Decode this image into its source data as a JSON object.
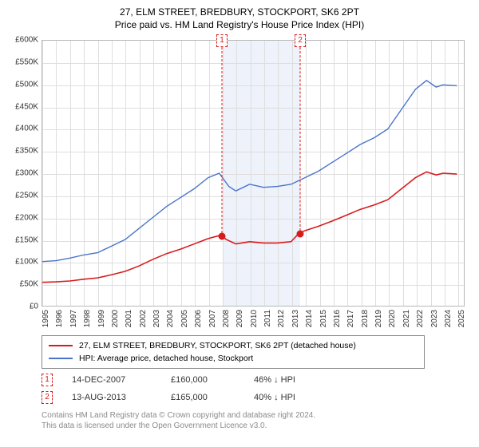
{
  "title": "27, ELM STREET, BREDBURY, STOCKPORT, SK6 2PT",
  "subtitle": "Price paid vs. HM Land Registry's House Price Index (HPI)",
  "chart": {
    "type": "line",
    "background_color": "#ffffff",
    "grid_color": "#dedede",
    "border_color": "#b8b8b8",
    "shade_color": "#edf2fb",
    "label_fontsize": 10,
    "x_years": [
      1995,
      1996,
      1997,
      1998,
      1999,
      2000,
      2001,
      2002,
      2003,
      2004,
      2005,
      2006,
      2007,
      2008,
      2009,
      2010,
      2011,
      2012,
      2013,
      2014,
      2015,
      2016,
      2017,
      2018,
      2019,
      2020,
      2021,
      2022,
      2023,
      2024,
      2025
    ],
    "xlim": [
      1995,
      2025.5
    ],
    "y_ticks": [
      0,
      50000,
      100000,
      150000,
      200000,
      250000,
      300000,
      350000,
      400000,
      450000,
      500000,
      550000,
      600000
    ],
    "y_tick_labels": [
      "£0",
      "£50K",
      "£100K",
      "£150K",
      "£200K",
      "£250K",
      "£300K",
      "£350K",
      "£400K",
      "£450K",
      "£500K",
      "£550K",
      "£600K"
    ],
    "ylim": [
      0,
      600000
    ],
    "shade_x": [
      2008,
      2013.6
    ],
    "series": [
      {
        "name": "hpi",
        "color": "#4a74c9",
        "width": 1.4,
        "points": [
          [
            1995,
            100000
          ],
          [
            1996,
            102000
          ],
          [
            1997,
            108000
          ],
          [
            1998,
            115000
          ],
          [
            1999,
            120000
          ],
          [
            2000,
            135000
          ],
          [
            2001,
            150000
          ],
          [
            2002,
            175000
          ],
          [
            2003,
            200000
          ],
          [
            2004,
            225000
          ],
          [
            2005,
            245000
          ],
          [
            2006,
            265000
          ],
          [
            2007,
            290000
          ],
          [
            2007.8,
            300000
          ],
          [
            2008.5,
            270000
          ],
          [
            2009,
            260000
          ],
          [
            2010,
            275000
          ],
          [
            2011,
            268000
          ],
          [
            2012,
            270000
          ],
          [
            2013,
            275000
          ],
          [
            2014,
            290000
          ],
          [
            2015,
            305000
          ],
          [
            2016,
            325000
          ],
          [
            2017,
            345000
          ],
          [
            2018,
            365000
          ],
          [
            2019,
            380000
          ],
          [
            2020,
            400000
          ],
          [
            2021,
            445000
          ],
          [
            2022,
            490000
          ],
          [
            2022.8,
            510000
          ],
          [
            2023.5,
            495000
          ],
          [
            2024,
            500000
          ],
          [
            2025,
            498000
          ]
        ]
      },
      {
        "name": "price_paid",
        "color": "#d91a1a",
        "width": 1.6,
        "points": [
          [
            1995,
            53000
          ],
          [
            1996,
            54000
          ],
          [
            1997,
            56000
          ],
          [
            1998,
            60000
          ],
          [
            1999,
            63000
          ],
          [
            2000,
            70000
          ],
          [
            2001,
            78000
          ],
          [
            2002,
            90000
          ],
          [
            2003,
            105000
          ],
          [
            2004,
            118000
          ],
          [
            2005,
            128000
          ],
          [
            2006,
            140000
          ],
          [
            2007,
            152000
          ],
          [
            2007.95,
            160000
          ],
          [
            2008.3,
            150000
          ],
          [
            2009,
            140000
          ],
          [
            2010,
            145000
          ],
          [
            2011,
            142000
          ],
          [
            2012,
            142000
          ],
          [
            2013,
            145000
          ],
          [
            2013.6,
            165000
          ],
          [
            2014,
            170000
          ],
          [
            2015,
            180000
          ],
          [
            2016,
            192000
          ],
          [
            2017,
            205000
          ],
          [
            2018,
            218000
          ],
          [
            2019,
            228000
          ],
          [
            2020,
            240000
          ],
          [
            2021,
            265000
          ],
          [
            2022,
            290000
          ],
          [
            2022.8,
            303000
          ],
          [
            2023.5,
            296000
          ],
          [
            2024,
            300000
          ],
          [
            2025,
            298000
          ]
        ]
      }
    ],
    "sale_markers": [
      {
        "label": "1",
        "x": 2007.95,
        "y": 160000
      },
      {
        "label": "2",
        "x": 2013.6,
        "y": 165000
      }
    ]
  },
  "legend": {
    "series_label_red": "27, ELM STREET, BREDBURY, STOCKPORT, SK6 2PT (detached house)",
    "series_label_blue": "HPI: Average price, detached house, Stockport"
  },
  "sales": [
    {
      "flag": "1",
      "date": "14-DEC-2007",
      "price": "£160,000",
      "delta": "46% ↓ HPI"
    },
    {
      "flag": "2",
      "date": "13-AUG-2013",
      "price": "£165,000",
      "delta": "40% ↓ HPI"
    }
  ],
  "footer_line1": "Contains HM Land Registry data © Crown copyright and database right 2024.",
  "footer_line2": "This data is licensed under the Open Government Licence v3.0."
}
